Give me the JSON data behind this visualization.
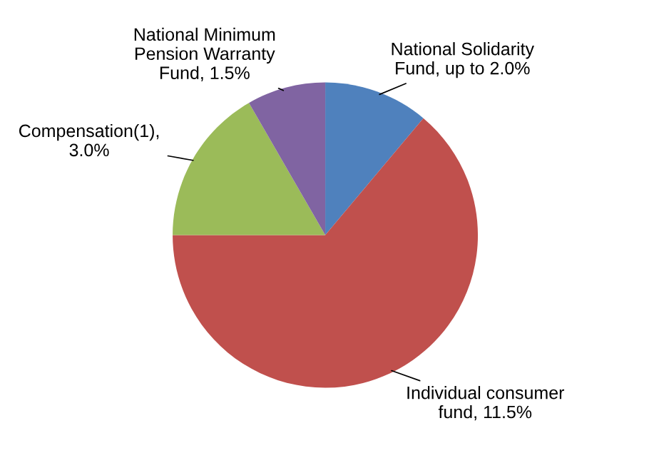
{
  "chart_data": {
    "type": "pie",
    "categories": [
      "National Solidarity\nFund, up to 2.0%",
      "Individual consumer\nfund, 11.5%",
      "Compensation(1),\n3.0%",
      "National Minimum\nPension Warranty\nFund, 1.5%"
    ],
    "values": [
      2.0,
      11.5,
      3.0,
      1.5
    ],
    "colors": [
      "#4f81bd",
      "#c0504d",
      "#9bbb59",
      "#8064a2"
    ],
    "legend": false
  }
}
